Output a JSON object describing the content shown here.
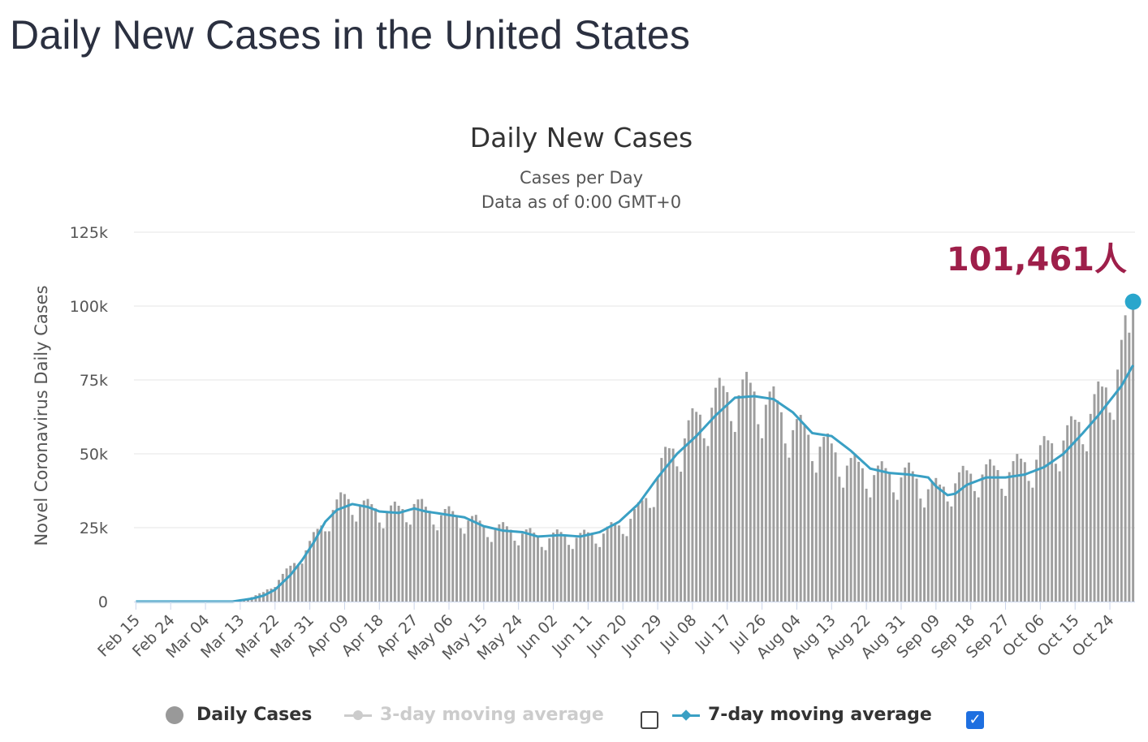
{
  "page": {
    "title": "Daily New Cases in the United States"
  },
  "colors": {
    "bar": "#9e9e9e",
    "line": "#3aa0c4",
    "marker": "#29a6cc",
    "annotation": "#9e1f4a",
    "grid": "#e6e6e6",
    "legend_inactive": "#cccccc",
    "checkbox": "#1e6fe0"
  },
  "chart_data": {
    "type": "bar",
    "title": "Daily New Cases",
    "subtitle_line1": "Cases per Day",
    "subtitle_line2": "Data as of 0:00 GMT+0",
    "ylabel": "Novel Coronavirus Daily Cases",
    "ylim": [
      0,
      125000
    ],
    "yticks": [
      0,
      25000,
      50000,
      75000,
      100000,
      125000
    ],
    "ytick_labels": [
      "0",
      "25k",
      "50k",
      "75k",
      "100k",
      "125k"
    ],
    "grid": true,
    "xtick_labels": [
      "Feb 15",
      "Feb 24",
      "Mar 04",
      "Mar 13",
      "Mar 22",
      "Mar 31",
      "Apr 09",
      "Apr 18",
      "Apr 27",
      "May 06",
      "May 15",
      "May 24",
      "Jun 02",
      "Jun 11",
      "Jun 20",
      "Jun 29",
      "Jul 08",
      "Jul 17",
      "Jul 26",
      "Aug 04",
      "Aug 13",
      "Aug 22",
      "Aug 31",
      "Sep 09",
      "Sep 18",
      "Sep 27",
      "Oct 06",
      "Oct 15",
      "Oct 24"
    ],
    "first_date": "Feb 15",
    "last_date": "Oct 30",
    "series": [
      {
        "name": "Daily Cases",
        "type": "bar",
        "values": []
      },
      {
        "name": "7-day moving average",
        "type": "line",
        "values": []
      }
    ],
    "annotation": {
      "text": "101,461人",
      "value": 101461,
      "date": "Oct 30"
    },
    "bar_anchors": [
      [
        0,
        0
      ],
      [
        20,
        0
      ],
      [
        25,
        200
      ],
      [
        28,
        700
      ],
      [
        30,
        1500
      ],
      [
        33,
        3000
      ],
      [
        36,
        6000
      ],
      [
        39,
        10000
      ],
      [
        42,
        14000
      ],
      [
        45,
        19000
      ],
      [
        48,
        25000
      ],
      [
        51,
        31000
      ],
      [
        54,
        34000
      ],
      [
        57,
        33000
      ],
      [
        60,
        31000
      ],
      [
        65,
        30000
      ],
      [
        70,
        30500
      ],
      [
        72,
        33000
      ],
      [
        75,
        30000
      ],
      [
        80,
        29000
      ],
      [
        85,
        28000
      ],
      [
        90,
        25000
      ],
      [
        95,
        24000
      ],
      [
        100,
        23000
      ],
      [
        105,
        21000
      ],
      [
        110,
        22000
      ],
      [
        115,
        21500
      ],
      [
        120,
        22500
      ],
      [
        125,
        25000
      ],
      [
        130,
        30000
      ],
      [
        133,
        36000
      ],
      [
        136,
        45000
      ],
      [
        140,
        52000
      ],
      [
        145,
        60000
      ],
      [
        150,
        67000
      ],
      [
        155,
        70000
      ],
      [
        160,
        69000
      ],
      [
        165,
        65000
      ],
      [
        170,
        58000
      ],
      [
        175,
        54000
      ],
      [
        180,
        50000
      ],
      [
        185,
        45000
      ],
      [
        190,
        43000
      ],
      [
        195,
        42000
      ],
      [
        200,
        42000
      ],
      [
        205,
        38000
      ],
      [
        208,
        37000
      ],
      [
        212,
        40000
      ],
      [
        218,
        43000
      ],
      [
        222,
        43000
      ],
      [
        227,
        44000
      ],
      [
        232,
        47000
      ],
      [
        238,
        53000
      ],
      [
        242,
        56000
      ],
      [
        246,
        62000
      ],
      [
        250,
        68000
      ],
      [
        253,
        75000
      ],
      [
        255,
        82000
      ],
      [
        257,
        91000
      ],
      [
        258,
        101461
      ]
    ],
    "ma_anchors": [
      [
        0,
        0
      ],
      [
        25,
        0
      ],
      [
        30,
        1000
      ],
      [
        33,
        2000
      ],
      [
        36,
        4000
      ],
      [
        40,
        9000
      ],
      [
        43,
        14000
      ],
      [
        46,
        20000
      ],
      [
        49,
        27000
      ],
      [
        52,
        31000
      ],
      [
        56,
        33000
      ],
      [
        60,
        32000
      ],
      [
        63,
        30500
      ],
      [
        68,
        30000
      ],
      [
        72,
        31500
      ],
      [
        75,
        30500
      ],
      [
        80,
        29500
      ],
      [
        85,
        28500
      ],
      [
        90,
        25500
      ],
      [
        95,
        24000
      ],
      [
        100,
        23500
      ],
      [
        104,
        22000
      ],
      [
        110,
        22500
      ],
      [
        115,
        22000
      ],
      [
        120,
        23500
      ],
      [
        125,
        27000
      ],
      [
        130,
        33000
      ],
      [
        135,
        42000
      ],
      [
        140,
        50000
      ],
      [
        145,
        56000
      ],
      [
        150,
        63000
      ],
      [
        155,
        69000
      ],
      [
        160,
        69500
      ],
      [
        165,
        68500
      ],
      [
        170,
        64000
      ],
      [
        175,
        57000
      ],
      [
        180,
        56000
      ],
      [
        185,
        51000
      ],
      [
        190,
        45000
      ],
      [
        195,
        43500
      ],
      [
        200,
        43000
      ],
      [
        205,
        42000
      ],
      [
        207,
        39000
      ],
      [
        210,
        36000
      ],
      [
        212,
        36500
      ],
      [
        215,
        39500
      ],
      [
        220,
        42000
      ],
      [
        225,
        42000
      ],
      [
        230,
        43000
      ],
      [
        235,
        45500
      ],
      [
        240,
        50000
      ],
      [
        245,
        57000
      ],
      [
        249,
        63000
      ],
      [
        252,
        68000
      ],
      [
        255,
        73000
      ],
      [
        258,
        80000
      ]
    ]
  },
  "legend": {
    "daily_cases": "Daily Cases",
    "ma3": "3-day moving average",
    "ma7": "7-day moving average",
    "ma3_checked": false,
    "ma7_checked": true
  }
}
